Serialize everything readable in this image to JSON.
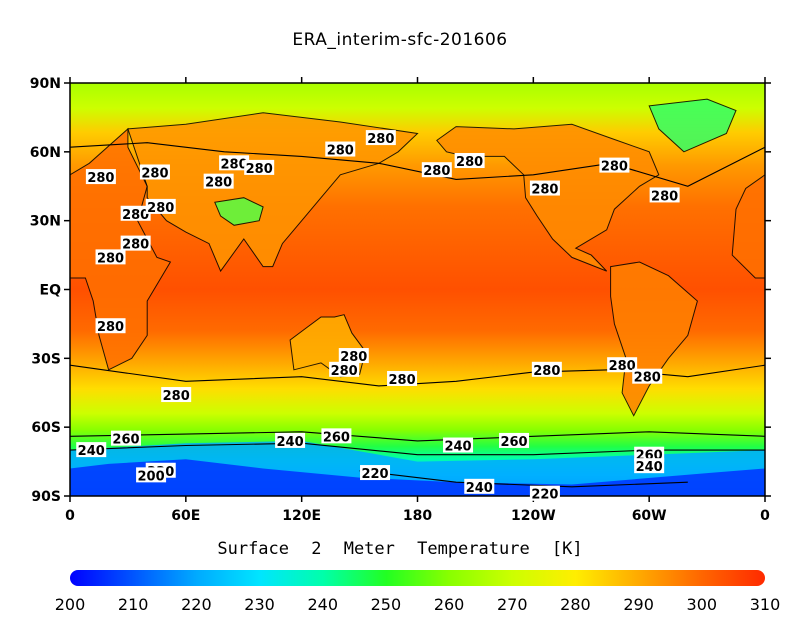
{
  "title": "ERA_interim-sfc-201606",
  "variable_label": "Surface  2  Meter  Temperature  [K]",
  "lat_ticks": [
    "90N",
    "60N",
    "30N",
    "EQ",
    "30S",
    "60S",
    "90S"
  ],
  "lon_ticks": [
    "0",
    "60E",
    "120E",
    "180",
    "120W",
    "60W",
    "0"
  ],
  "colorbar": {
    "min": 200,
    "max": 310,
    "ticks": [
      "200",
      "210",
      "220",
      "230",
      "240",
      "250",
      "260",
      "270",
      "280",
      "290",
      "300",
      "310"
    ],
    "stops": [
      "#0000ff",
      "#0055ff",
      "#00aaff",
      "#00e5ff",
      "#00ffaa",
      "#22ff22",
      "#88ff00",
      "#ccff00",
      "#ffee00",
      "#ffaa00",
      "#ff6600",
      "#ff2a00"
    ]
  },
  "contour_labels": [
    {
      "text": "280",
      "lon": 140,
      "lat": 61
    },
    {
      "text": "280",
      "lon": 16,
      "lat": 49
    },
    {
      "text": "280",
      "lon": 44,
      "lat": 51
    },
    {
      "text": "280",
      "lon": 85,
      "lat": 55
    },
    {
      "text": "280",
      "lon": 98,
      "lat": 53
    },
    {
      "text": "280",
      "lon": 77,
      "lat": 47
    },
    {
      "text": "280",
      "lon": 161,
      "lat": 66
    },
    {
      "text": "280",
      "lon": 190,
      "lat": 52
    },
    {
      "text": "280",
      "lon": 207,
      "lat": 56
    },
    {
      "text": "280",
      "lon": 246,
      "lat": 44
    },
    {
      "text": "280",
      "lon": 282,
      "lat": 54
    },
    {
      "text": "280",
      "lon": 308,
      "lat": 41
    },
    {
      "text": "280",
      "lon": 34,
      "lat": 33
    },
    {
      "text": "280",
      "lon": 47,
      "lat": 36
    },
    {
      "text": "280",
      "lon": 34,
      "lat": 20
    },
    {
      "text": "280",
      "lon": 21,
      "lat": 14
    },
    {
      "text": "280",
      "lon": 21,
      "lat": -16
    },
    {
      "text": "280",
      "lon": 147,
      "lat": -29
    },
    {
      "text": "280",
      "lon": 142,
      "lat": -35
    },
    {
      "text": "280",
      "lon": 172,
      "lat": -39
    },
    {
      "text": "280",
      "lon": 247,
      "lat": -35
    },
    {
      "text": "280",
      "lon": 286,
      "lat": -33
    },
    {
      "text": "280",
      "lon": 299,
      "lat": -38
    },
    {
      "text": "280",
      "lon": 55,
      "lat": -46
    },
    {
      "text": "240",
      "lon": 11,
      "lat": -70
    },
    {
      "text": "260",
      "lon": 29,
      "lat": -65
    },
    {
      "text": "240",
      "lon": 114,
      "lat": -66
    },
    {
      "text": "260",
      "lon": 138,
      "lat": -64
    },
    {
      "text": "240",
      "lon": 201,
      "lat": -68
    },
    {
      "text": "260",
      "lon": 230,
      "lat": -66
    },
    {
      "text": "220",
      "lon": 158,
      "lat": -80
    },
    {
      "text": "220",
      "lon": 47,
      "lat": -79
    },
    {
      "text": "200",
      "lon": 42,
      "lat": -81
    },
    {
      "text": "240",
      "lon": 212,
      "lat": -86
    },
    {
      "text": "220",
      "lon": 246,
      "lat": -89
    },
    {
      "text": "260",
      "lon": 300,
      "lat": -72
    },
    {
      "text": "240",
      "lon": 300,
      "lat": -77
    }
  ]
}
